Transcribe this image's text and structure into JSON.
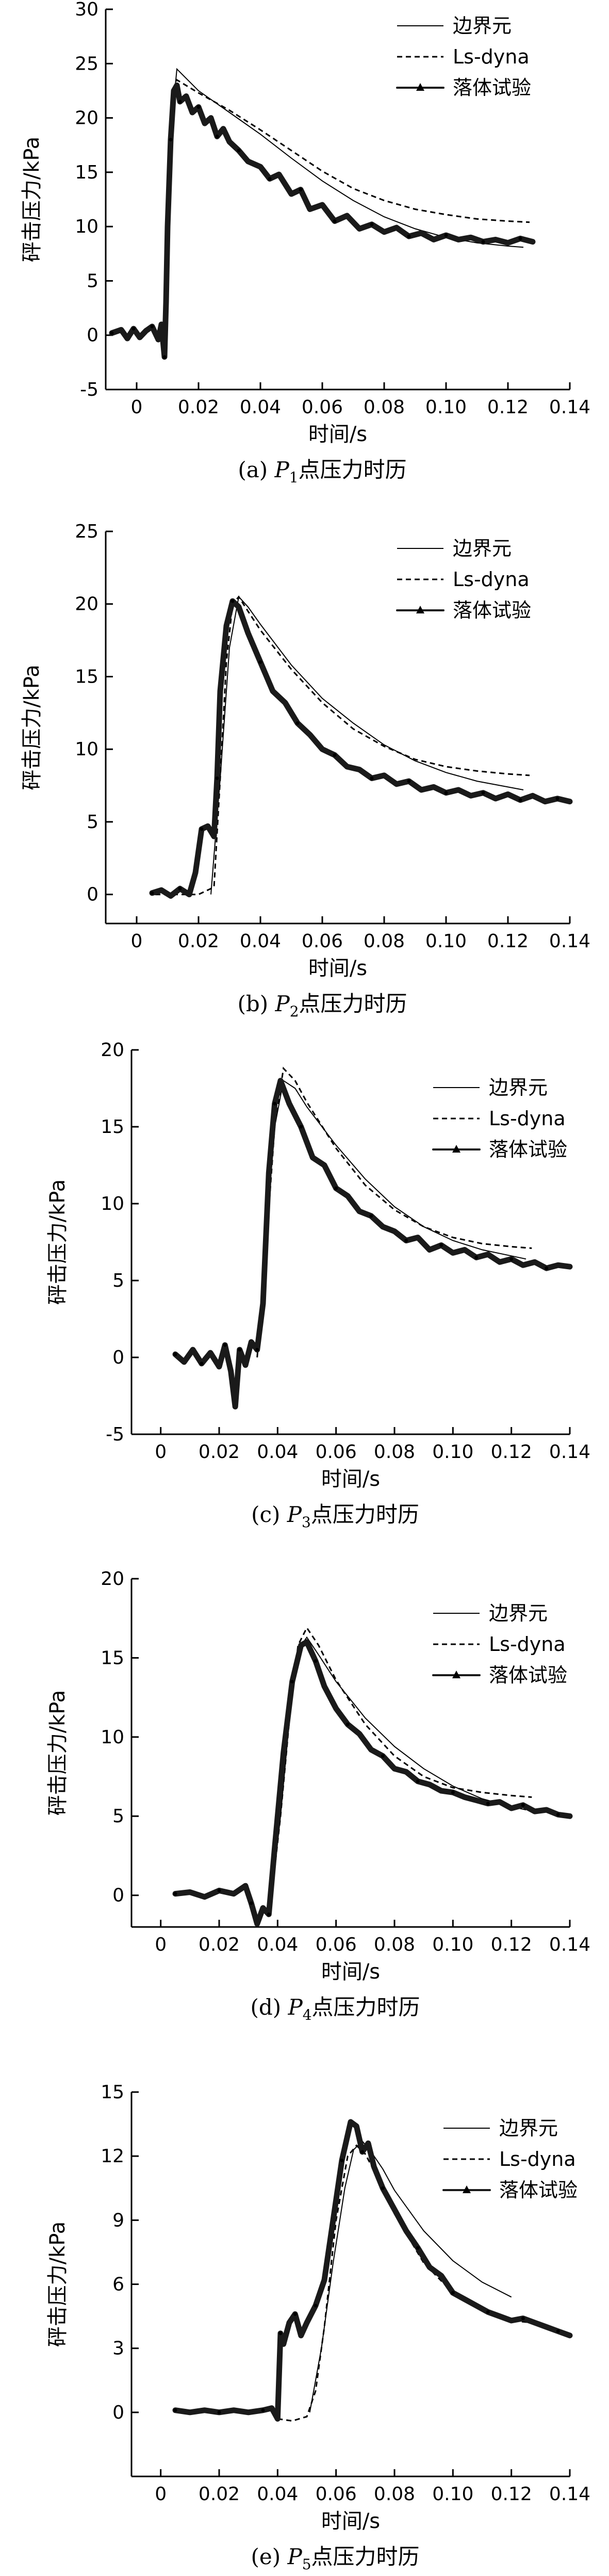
{
  "chart_data": [
    {
      "type": "line",
      "caption": {
        "prefix": "(a) ",
        "point": "P",
        "sub": "1",
        "suffix": "点压力时历"
      },
      "xlabel": "时间/s",
      "ylabel": "砰击压力/kPa",
      "xlim": [
        -0.01,
        0.14
      ],
      "ylim": [
        -5,
        30
      ],
      "xticks": [
        "0",
        "0.02",
        "0.04",
        "0.06",
        "0.08",
        "0.10",
        "0.12",
        "0.14"
      ],
      "yticks": [
        "-5",
        "0",
        "5",
        "10",
        "15",
        "20",
        "25",
        "30"
      ],
      "legend": [
        "边界元",
        "Ls-dyna",
        "落体试验"
      ],
      "series": [
        {
          "name": "边界元",
          "style": "thin",
          "x": [
            0.009,
            0.0115,
            0.013,
            0.02,
            0.03,
            0.04,
            0.05,
            0.06,
            0.07,
            0.08,
            0.09,
            0.1,
            0.11,
            0.12,
            0.125
          ],
          "y": [
            0,
            20,
            24.5,
            22.5,
            20.5,
            18.5,
            16.3,
            14.2,
            12.4,
            10.9,
            9.8,
            9.0,
            8.5,
            8.2,
            8.1
          ]
        },
        {
          "name": "Ls-dyna",
          "style": "dashed",
          "x": [
            0.009,
            0.0115,
            0.013,
            0.02,
            0.03,
            0.04,
            0.05,
            0.06,
            0.07,
            0.08,
            0.09,
            0.1,
            0.11,
            0.12,
            0.127
          ],
          "y": [
            0,
            21,
            23.5,
            22.3,
            20.7,
            18.9,
            17.0,
            15.1,
            13.5,
            12.4,
            11.6,
            11.1,
            10.7,
            10.5,
            10.4
          ]
        },
        {
          "name": "落体试验",
          "style": "thick",
          "x": [
            -0.008,
            -0.005,
            -0.003,
            -0.001,
            0.001,
            0.003,
            0.005,
            0.007,
            0.008,
            0.009,
            0.0095,
            0.01,
            0.011,
            0.012,
            0.013,
            0.014,
            0.016,
            0.018,
            0.02,
            0.022,
            0.024,
            0.026,
            0.028,
            0.03,
            0.033,
            0.036,
            0.04,
            0.043,
            0.046,
            0.05,
            0.053,
            0.056,
            0.06,
            0.064,
            0.068,
            0.072,
            0.076,
            0.08,
            0.084,
            0.088,
            0.092,
            0.096,
            0.1,
            0.104,
            0.108,
            0.112,
            0.116,
            0.12,
            0.124,
            0.128
          ],
          "y": [
            0.2,
            0.5,
            -0.3,
            0.6,
            -0.2,
            0.4,
            0.8,
            -0.4,
            1.0,
            -2.0,
            3.0,
            10.0,
            18.0,
            22.5,
            23.0,
            21.5,
            22.0,
            20.5,
            21.0,
            19.5,
            20.0,
            18.3,
            19.0,
            17.8,
            17.0,
            16.0,
            15.5,
            14.4,
            14.8,
            13.0,
            13.4,
            11.6,
            12.0,
            10.5,
            11.0,
            9.8,
            10.2,
            9.5,
            9.9,
            9.1,
            9.4,
            8.8,
            9.2,
            8.8,
            9.0,
            8.6,
            8.8,
            8.5,
            8.9,
            8.6
          ]
        }
      ]
    },
    {
      "type": "line",
      "caption": {
        "prefix": "(b) ",
        "point": "P",
        "sub": "2",
        "suffix": "点压力时历"
      },
      "xlabel": "时间/s",
      "ylabel": "砰击压力/kPa",
      "xlim": [
        -0.01,
        0.14
      ],
      "ylim": [
        -2,
        25
      ],
      "xticks": [
        "0",
        "0.02",
        "0.04",
        "0.06",
        "0.08",
        "0.10",
        "0.12",
        "0.14"
      ],
      "yticks": [
        "0",
        "5",
        "10",
        "15",
        "20",
        "25"
      ],
      "legend": [
        "边界元",
        "Ls-dyna",
        "落体试验"
      ],
      "series": [
        {
          "name": "边界元",
          "style": "thin",
          "x": [
            0.024,
            0.027,
            0.03,
            0.033,
            0.036,
            0.04,
            0.05,
            0.06,
            0.07,
            0.08,
            0.09,
            0.1,
            0.11,
            0.12,
            0.125
          ],
          "y": [
            0,
            8,
            17,
            20.5,
            19.8,
            18.6,
            15.8,
            13.5,
            11.8,
            10.3,
            9.2,
            8.4,
            7.8,
            7.4,
            7.2
          ]
        },
        {
          "name": "Ls-dyna",
          "style": "dashed",
          "x": [
            0.006,
            0.02,
            0.025,
            0.027,
            0.029,
            0.031,
            0.033,
            0.036,
            0.04,
            0.05,
            0.06,
            0.07,
            0.08,
            0.09,
            0.1,
            0.11,
            0.12,
            0.127
          ],
          "y": [
            0,
            0,
            0.5,
            8.0,
            16.0,
            20.0,
            20.5,
            19.5,
            18.2,
            15.5,
            13.2,
            11.4,
            10.2,
            9.3,
            8.8,
            8.5,
            8.3,
            8.2
          ]
        },
        {
          "name": "落体试验",
          "style": "thick",
          "x": [
            0.005,
            0.008,
            0.011,
            0.014,
            0.017,
            0.019,
            0.021,
            0.023,
            0.025,
            0.026,
            0.027,
            0.029,
            0.031,
            0.033,
            0.036,
            0.04,
            0.044,
            0.048,
            0.052,
            0.056,
            0.06,
            0.064,
            0.068,
            0.072,
            0.076,
            0.08,
            0.084,
            0.088,
            0.092,
            0.096,
            0.1,
            0.104,
            0.108,
            0.112,
            0.116,
            0.12,
            0.124,
            0.128,
            0.132,
            0.136,
            0.14
          ],
          "y": [
            0.1,
            0.3,
            -0.1,
            0.4,
            0.0,
            1.5,
            4.5,
            4.7,
            4.0,
            8.0,
            14.0,
            18.5,
            20.2,
            19.8,
            18.0,
            16.0,
            14.0,
            13.2,
            11.8,
            11.0,
            10.0,
            9.6,
            8.8,
            8.6,
            8.0,
            8.2,
            7.6,
            7.8,
            7.2,
            7.4,
            7.0,
            7.2,
            6.8,
            7.0,
            6.6,
            6.9,
            6.5,
            6.8,
            6.4,
            6.6,
            6.4
          ]
        }
      ]
    },
    {
      "type": "line",
      "caption": {
        "prefix": "(c) ",
        "point": "P",
        "sub": "3",
        "suffix": "点压力时历"
      },
      "xlabel": "时间/s",
      "ylabel": "砰击压力/kPa",
      "xlim": [
        -0.01,
        0.14
      ],
      "ylim": [
        -5,
        20
      ],
      "xticks": [
        "0",
        "0.02",
        "0.04",
        "0.06",
        "0.08",
        "0.10",
        "0.12",
        "0.14"
      ],
      "yticks": [
        "-5",
        "0",
        "5",
        "10",
        "15",
        "20"
      ],
      "legend": [
        "边界元",
        "Ls-dyna",
        "落体试验"
      ],
      "series": [
        {
          "name": "边界元",
          "style": "thin",
          "x": [
            0.033,
            0.036,
            0.039,
            0.042,
            0.046,
            0.05,
            0.06,
            0.07,
            0.08,
            0.09,
            0.1,
            0.11,
            0.12,
            0.125
          ],
          "y": [
            0,
            8,
            15,
            18.0,
            17.5,
            16.3,
            13.8,
            11.6,
            9.8,
            8.5,
            7.6,
            7.0,
            6.6,
            6.4
          ]
        },
        {
          "name": "Ls-dyna",
          "style": "dashed",
          "x": [
            0.033,
            0.036,
            0.039,
            0.042,
            0.046,
            0.05,
            0.06,
            0.07,
            0.08,
            0.09,
            0.1,
            0.11,
            0.12,
            0.127
          ],
          "y": [
            0,
            7,
            15,
            18.8,
            18.0,
            16.6,
            13.6,
            11.2,
            9.6,
            8.5,
            7.8,
            7.4,
            7.2,
            7.1
          ]
        },
        {
          "name": "落体试验",
          "style": "thick",
          "x": [
            0.005,
            0.008,
            0.011,
            0.014,
            0.017,
            0.02,
            0.022,
            0.024,
            0.0255,
            0.027,
            0.029,
            0.031,
            0.033,
            0.035,
            0.037,
            0.039,
            0.041,
            0.044,
            0.048,
            0.052,
            0.056,
            0.06,
            0.064,
            0.068,
            0.072,
            0.076,
            0.08,
            0.084,
            0.088,
            0.092,
            0.096,
            0.1,
            0.104,
            0.108,
            0.112,
            0.116,
            0.12,
            0.124,
            0.128,
            0.132,
            0.136,
            0.14
          ],
          "y": [
            0.2,
            -0.3,
            0.5,
            -0.4,
            0.3,
            -0.6,
            0.8,
            -0.9,
            -3.2,
            0.5,
            -0.5,
            1.0,
            0.5,
            3.5,
            12.0,
            16.5,
            18.0,
            16.5,
            15.0,
            13.0,
            12.5,
            11.0,
            10.5,
            9.5,
            9.2,
            8.5,
            8.2,
            7.6,
            7.8,
            7.0,
            7.3,
            6.8,
            7.0,
            6.5,
            6.7,
            6.2,
            6.4,
            6.0,
            6.2,
            5.8,
            6.0,
            5.9
          ]
        }
      ]
    },
    {
      "type": "line",
      "caption": {
        "prefix": "(d) ",
        "point": "P",
        "sub": "4",
        "suffix": "点压力时历"
      },
      "xlabel": "时间/s",
      "ylabel": "砰击压力/kPa",
      "xlim": [
        -0.01,
        0.14
      ],
      "ylim": [
        -2,
        20
      ],
      "xticks": [
        "0",
        "0.02",
        "0.04",
        "0.06",
        "0.08",
        "0.10",
        "0.12",
        "0.14"
      ],
      "yticks": [
        "0",
        "5",
        "10",
        "15",
        "20"
      ],
      "legend": [
        "边界元",
        "Ls-dyna",
        "落体试验"
      ],
      "series": [
        {
          "name": "边界元",
          "style": "thin",
          "x": [
            0.038,
            0.041,
            0.044,
            0.047,
            0.05,
            0.054,
            0.06,
            0.07,
            0.08,
            0.09,
            0.1,
            0.11,
            0.12,
            0.125
          ],
          "y": [
            0,
            5,
            11,
            15.5,
            16.3,
            15.2,
            13.5,
            11.2,
            9.4,
            8.0,
            6.9,
            6.1,
            5.6,
            5.4
          ]
        },
        {
          "name": "Ls-dyna",
          "style": "dashed",
          "x": [
            0.038,
            0.041,
            0.044,
            0.047,
            0.05,
            0.054,
            0.06,
            0.07,
            0.08,
            0.09,
            0.1,
            0.11,
            0.12,
            0.127
          ],
          "y": [
            0,
            5,
            11,
            15.8,
            16.9,
            15.8,
            13.6,
            10.8,
            8.8,
            7.5,
            6.8,
            6.5,
            6.3,
            6.2
          ]
        },
        {
          "name": "落体试验",
          "style": "thick",
          "x": [
            0.005,
            0.01,
            0.015,
            0.02,
            0.025,
            0.029,
            0.031,
            0.033,
            0.035,
            0.037,
            0.039,
            0.042,
            0.045,
            0.048,
            0.05,
            0.053,
            0.056,
            0.06,
            0.064,
            0.068,
            0.072,
            0.076,
            0.08,
            0.084,
            0.088,
            0.092,
            0.096,
            0.1,
            0.104,
            0.108,
            0.112,
            0.116,
            0.12,
            0.124,
            0.128,
            0.132,
            0.136,
            0.14
          ],
          "y": [
            0.1,
            0.2,
            -0.1,
            0.3,
            0.1,
            0.6,
            -0.5,
            -1.8,
            -0.8,
            -1.2,
            3.0,
            9.0,
            13.5,
            15.8,
            16.0,
            14.8,
            13.2,
            11.8,
            10.8,
            10.2,
            9.2,
            8.8,
            8.0,
            7.8,
            7.2,
            7.0,
            6.6,
            6.5,
            6.2,
            6.0,
            5.8,
            5.9,
            5.5,
            5.7,
            5.3,
            5.4,
            5.1,
            5.0
          ]
        }
      ]
    },
    {
      "type": "line",
      "caption": {
        "prefix": "(e) ",
        "point": "P",
        "sub": "5",
        "suffix": "点压力时历"
      },
      "xlabel": "时间/s",
      "ylabel": "砰击压力/kPa",
      "xlim": [
        -0.01,
        0.14
      ],
      "ylim": [
        -3,
        15
      ],
      "xticks": [
        "0",
        "0.02",
        "0.04",
        "0.06",
        "0.08",
        "0.10",
        "0.12",
        "0.14"
      ],
      "yticks": [
        "0",
        "3",
        "6",
        "9",
        "12",
        "15"
      ],
      "legend": [
        "边界元",
        "Ls-dyna",
        "落体试验"
      ],
      "series": [
        {
          "name": "边界元",
          "style": "thin",
          "x": [
            0.051,
            0.055,
            0.059,
            0.063,
            0.066,
            0.069,
            0.072,
            0.076,
            0.08,
            0.09,
            0.1,
            0.11,
            0.12
          ],
          "y": [
            0,
            3,
            7,
            10.5,
            12.3,
            12.7,
            12.2,
            11.4,
            10.4,
            8.5,
            7.1,
            6.1,
            5.4
          ]
        },
        {
          "name": "Ls-dyna",
          "style": "dashed",
          "x": [
            0.04,
            0.045,
            0.05,
            0.053,
            0.056,
            0.06,
            0.064,
            0.067,
            0.07,
            0.075,
            0.08,
            0.09,
            0.1,
            0.11,
            0.12,
            0.127
          ],
          "y": [
            -0.3,
            -0.4,
            -0.2,
            1.0,
            4.0,
            9.0,
            12.0,
            12.5,
            12.1,
            10.8,
            9.3,
            7.0,
            5.6,
            4.8,
            4.3,
            4.2
          ]
        },
        {
          "name": "落体试验",
          "style": "thick",
          "x": [
            0.005,
            0.01,
            0.015,
            0.02,
            0.025,
            0.03,
            0.035,
            0.038,
            0.04,
            0.041,
            0.042,
            0.044,
            0.046,
            0.048,
            0.05,
            0.053,
            0.056,
            0.059,
            0.062,
            0.065,
            0.067,
            0.069,
            0.071,
            0.073,
            0.076,
            0.08,
            0.084,
            0.088,
            0.092,
            0.096,
            0.1,
            0.104,
            0.108,
            0.112,
            0.116,
            0.12,
            0.124,
            0.128,
            0.132,
            0.136,
            0.14
          ],
          "y": [
            0.1,
            0.0,
            0.1,
            0.0,
            0.1,
            0.0,
            0.1,
            0.2,
            -0.3,
            3.7,
            3.2,
            4.2,
            4.6,
            3.6,
            4.2,
            5.0,
            6.2,
            9.0,
            11.8,
            13.6,
            13.4,
            12.2,
            12.6,
            11.5,
            10.5,
            9.5,
            8.5,
            7.7,
            6.8,
            6.4,
            5.6,
            5.3,
            5.0,
            4.7,
            4.5,
            4.3,
            4.4,
            4.2,
            4.0,
            3.8,
            3.6
          ]
        }
      ]
    }
  ]
}
